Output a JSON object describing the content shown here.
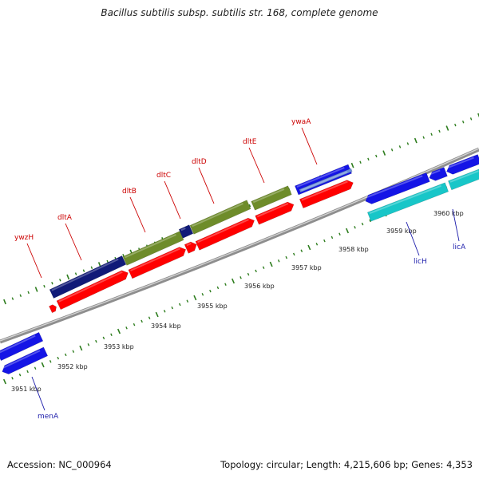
{
  "title": "Bacillus subtilis subsp. subtilis str. 168, complete genome",
  "footer": {
    "accession": "Accession: NC_000964",
    "summary": "Topology: circular; Length: 4,215,606 bp; Genes: 4,353"
  },
  "colors": {
    "forward_label": "#cc0000",
    "reverse_label": "#1a1aaa",
    "backbone": "#8c8c8c",
    "tick": "#2e7d1e",
    "cds": "#ff0000",
    "gene_navy": "#101a78",
    "gene_olive": "#6e8c2a",
    "gene_blue": "#1414e6",
    "gene_cyan": "#18c6c8"
  },
  "ruler": [
    {
      "kbp": 3951,
      "label": "3951 kbp"
    },
    {
      "kbp": 3952,
      "label": "3952 kbp"
    },
    {
      "kbp": 3953,
      "label": "3953 kbp"
    },
    {
      "kbp": 3954,
      "label": "3954 kbp"
    },
    {
      "kbp": 3955,
      "label": "3955 kbp"
    },
    {
      "kbp": 3956,
      "label": "3956 kbp"
    },
    {
      "kbp": 3957,
      "label": "3957 kbp"
    },
    {
      "kbp": 3958,
      "label": "3958 kbp"
    },
    {
      "kbp": 3959,
      "label": "3959 kbp"
    },
    {
      "kbp": 3960,
      "label": "3960 kbp"
    }
  ],
  "genes": [
    {
      "name": "ywzH",
      "strand": "forward"
    },
    {
      "name": "dltA",
      "strand": "forward"
    },
    {
      "name": "dltB",
      "strand": "forward"
    },
    {
      "name": "dltC",
      "strand": "forward"
    },
    {
      "name": "dltD",
      "strand": "forward"
    },
    {
      "name": "dltE",
      "strand": "forward"
    },
    {
      "name": "ywaA",
      "strand": "forward"
    },
    {
      "name": "menA",
      "strand": "reverse"
    },
    {
      "name": "licH",
      "strand": "reverse"
    },
    {
      "name": "licA",
      "strand": "reverse"
    }
  ]
}
